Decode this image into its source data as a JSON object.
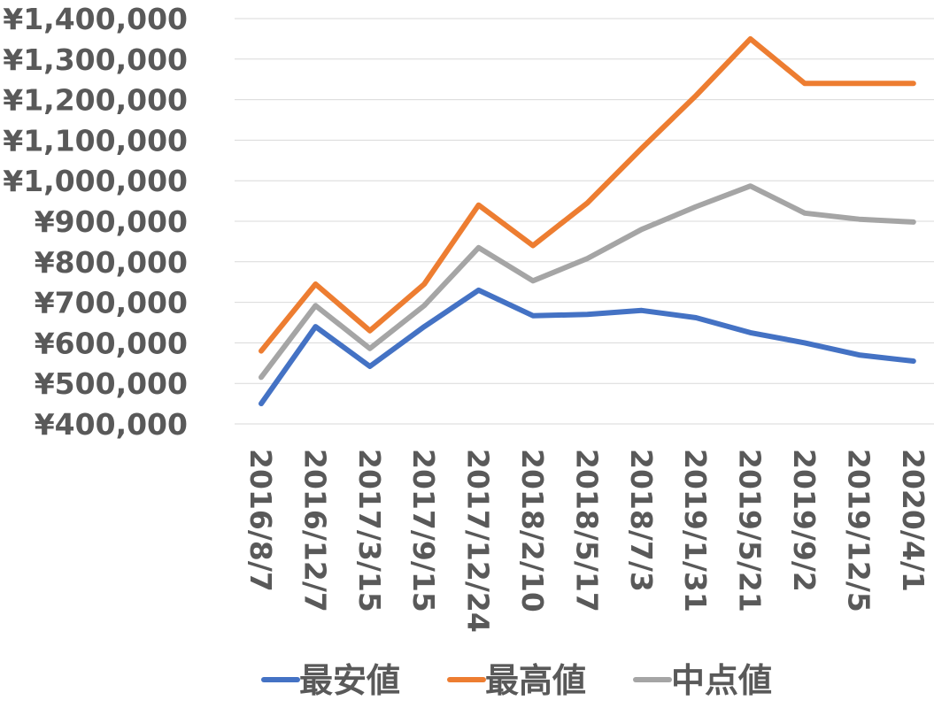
{
  "chart_data": {
    "type": "line",
    "categories": [
      "2016/8/7",
      "2016/12/7",
      "2017/3/15",
      "2017/9/15",
      "2017/12/24",
      "2018/2/10",
      "2018/5/17",
      "2018/7/3",
      "2019/1/31",
      "2019/5/21",
      "2019/9/2",
      "2019/12/5",
      "2020/4/1"
    ],
    "series": [
      {
        "name": "最安値",
        "color": "#4472C4",
        "values": [
          450000,
          640000,
          542000,
          640000,
          730000,
          667000,
          670000,
          680000,
          662000,
          625000,
          600000,
          570000,
          555000
        ]
      },
      {
        "name": "最高値",
        "color": "#ED7D31",
        "values": [
          580000,
          745000,
          630000,
          745000,
          940000,
          840000,
          945000,
          1080000,
          1210000,
          1350000,
          1240000,
          1240000,
          1240000
        ]
      },
      {
        "name": "中点値",
        "color": "#A5A5A5",
        "values": [
          515000,
          692000,
          586000,
          692000,
          835000,
          753000,
          808000,
          880000,
          936000,
          987000,
          920000,
          905000,
          898000
        ]
      }
    ],
    "ylim": [
      400000,
      1400000
    ],
    "yticks": [
      400000,
      500000,
      600000,
      700000,
      800000,
      900000,
      1000000,
      1100000,
      1200000,
      1300000,
      1400000
    ],
    "ytick_labels": [
      "¥400,000",
      "¥500,000",
      "¥600,000",
      "¥700,000",
      "¥800,000",
      "¥900,000",
      "¥1,000,000",
      "¥1,100,000",
      "¥1,200,000",
      "¥1,300,000",
      "¥1,400,000"
    ],
    "grid": true,
    "legend_position": "bottom"
  }
}
